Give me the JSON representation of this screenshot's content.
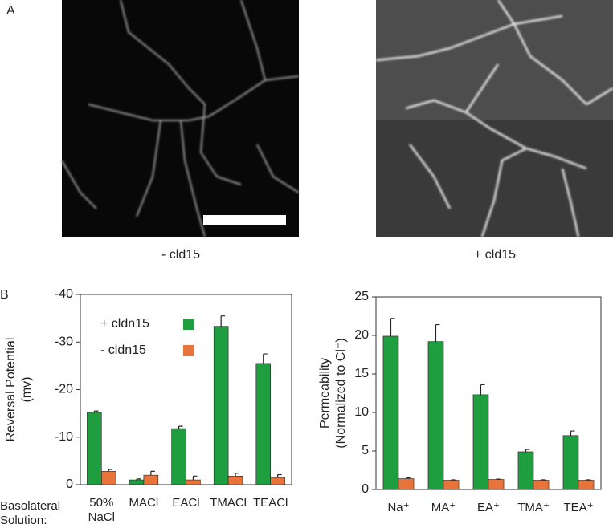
{
  "panels": {
    "a_label": "A",
    "b_label": "B",
    "image_captions": [
      "- cld15",
      "+ cld15"
    ]
  },
  "chart_data": [
    {
      "type": "bar",
      "y_label": [
        "Reversal Potential",
        "(mv)"
      ],
      "x_axis_title": "Basolateral Solution:",
      "categories": [
        "50% NaCl",
        "MACl",
        "EACl",
        "TMACl",
        "TEACl"
      ],
      "series": [
        {
          "name": "+ cldn15",
          "color": "#1e9e3e",
          "values": [
            -15.2,
            -1.0,
            -11.8,
            -33.3,
            -25.5
          ],
          "errors": [
            0.3,
            0.2,
            0.5,
            2.2,
            2.0
          ]
        },
        {
          "name": "- cldn15",
          "color": "#e8743b",
          "values": [
            -2.8,
            -2.0,
            -1.0,
            -1.8,
            -1.5
          ],
          "errors": [
            0.4,
            0.8,
            0.8,
            0.6,
            0.6
          ]
        }
      ],
      "ylim": [
        0,
        -40
      ],
      "yticks": [
        0,
        -10,
        -20,
        -30,
        -40
      ],
      "legend": "upper left"
    },
    {
      "type": "bar",
      "y_label": [
        "Permeability",
        "(Normalized to Cl⁻)"
      ],
      "categories": [
        "Na⁺",
        "MA⁺",
        "EA⁺",
        "TMA⁺",
        "TEA⁺"
      ],
      "series": [
        {
          "color": "#1e9e3e",
          "values": [
            19.9,
            19.2,
            12.3,
            4.9,
            7.0
          ],
          "errors": [
            2.3,
            2.2,
            1.3,
            0.3,
            0.6
          ]
        },
        {
          "color": "#e8743b",
          "values": [
            1.4,
            1.2,
            1.3,
            1.2,
            1.2
          ],
          "errors": [
            0.1,
            0.05,
            0.05,
            0.05,
            0.05
          ]
        }
      ],
      "ylim": [
        0,
        25
      ],
      "yticks": [
        0,
        5,
        10,
        15,
        20,
        25
      ]
    }
  ]
}
